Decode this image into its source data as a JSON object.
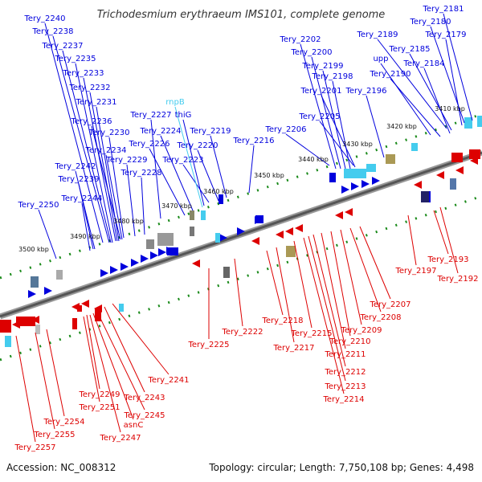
{
  "title": "Trichodesmium erythraeum IMS101, complete genome",
  "footer": {
    "accession": "Accession: NC_008312",
    "summary": "Topology: circular; Length: 7,750,108 bp; Genes: 4,498"
  },
  "colors": {
    "forward": "#0000dd",
    "reverse": "#dd0000",
    "rna": "#44ccee",
    "tick": "#118811",
    "backbone": "#666666"
  },
  "kbp_labels": [
    "3410 kbp",
    "3420 kbp",
    "3430 kbp",
    "3440 kbp",
    "3450 kbp",
    "3460 kbp",
    "3470 kbp",
    "3480 kbp",
    "3490 kbp",
    "3500 kbp"
  ],
  "top_genes": [
    "Tery_2181",
    "Tery_2180",
    "Tery_2179",
    "Tery_2189",
    "Tery_2185",
    "Tery_2184",
    "upp",
    "Tery_2190",
    "Tery_2202",
    "Tery_2200",
    "Tery_2199",
    "Tery_2198",
    "Tery_2201",
    "Tery_2196",
    "Tery_2205",
    "Tery_2206",
    "Tery_2216",
    "Tery_2219",
    "Tery_2220",
    "Tery_2223",
    "Tery_2224",
    "Tery_2226",
    "Tery_2227",
    "rnpB",
    "thiG",
    "Tery_2228",
    "Tery_2229",
    "Tery_2230",
    "Tery_2234",
    "Tery_2236",
    "Tery_2231",
    "Tery_2232",
    "Tery_2233",
    "Tery_2235",
    "Tery_2237",
    "Tery_2238",
    "Tery_2240",
    "Tery_2242",
    "Tery_2239",
    "Tery_2244",
    "Tery_2250"
  ],
  "bottom_genes": [
    "Tery_2193",
    "Tery_2192",
    "Tery_2197",
    "Tery_2207",
    "Tery_2208",
    "Tery_2209",
    "Tery_2210",
    "Tery_2211",
    "Tery_2212",
    "Tery_2213",
    "Tery_2214",
    "Tery_2215",
    "Tery_2217",
    "Tery_2218",
    "Tery_2222",
    "Tery_2225",
    "Tery_2241",
    "Tery_2243",
    "Tery_2245",
    "Tery_2249",
    "Tery_2251",
    "asnC",
    "Tery_2247",
    "Tery_2254",
    "Tery_2255",
    "Tery_2257"
  ]
}
